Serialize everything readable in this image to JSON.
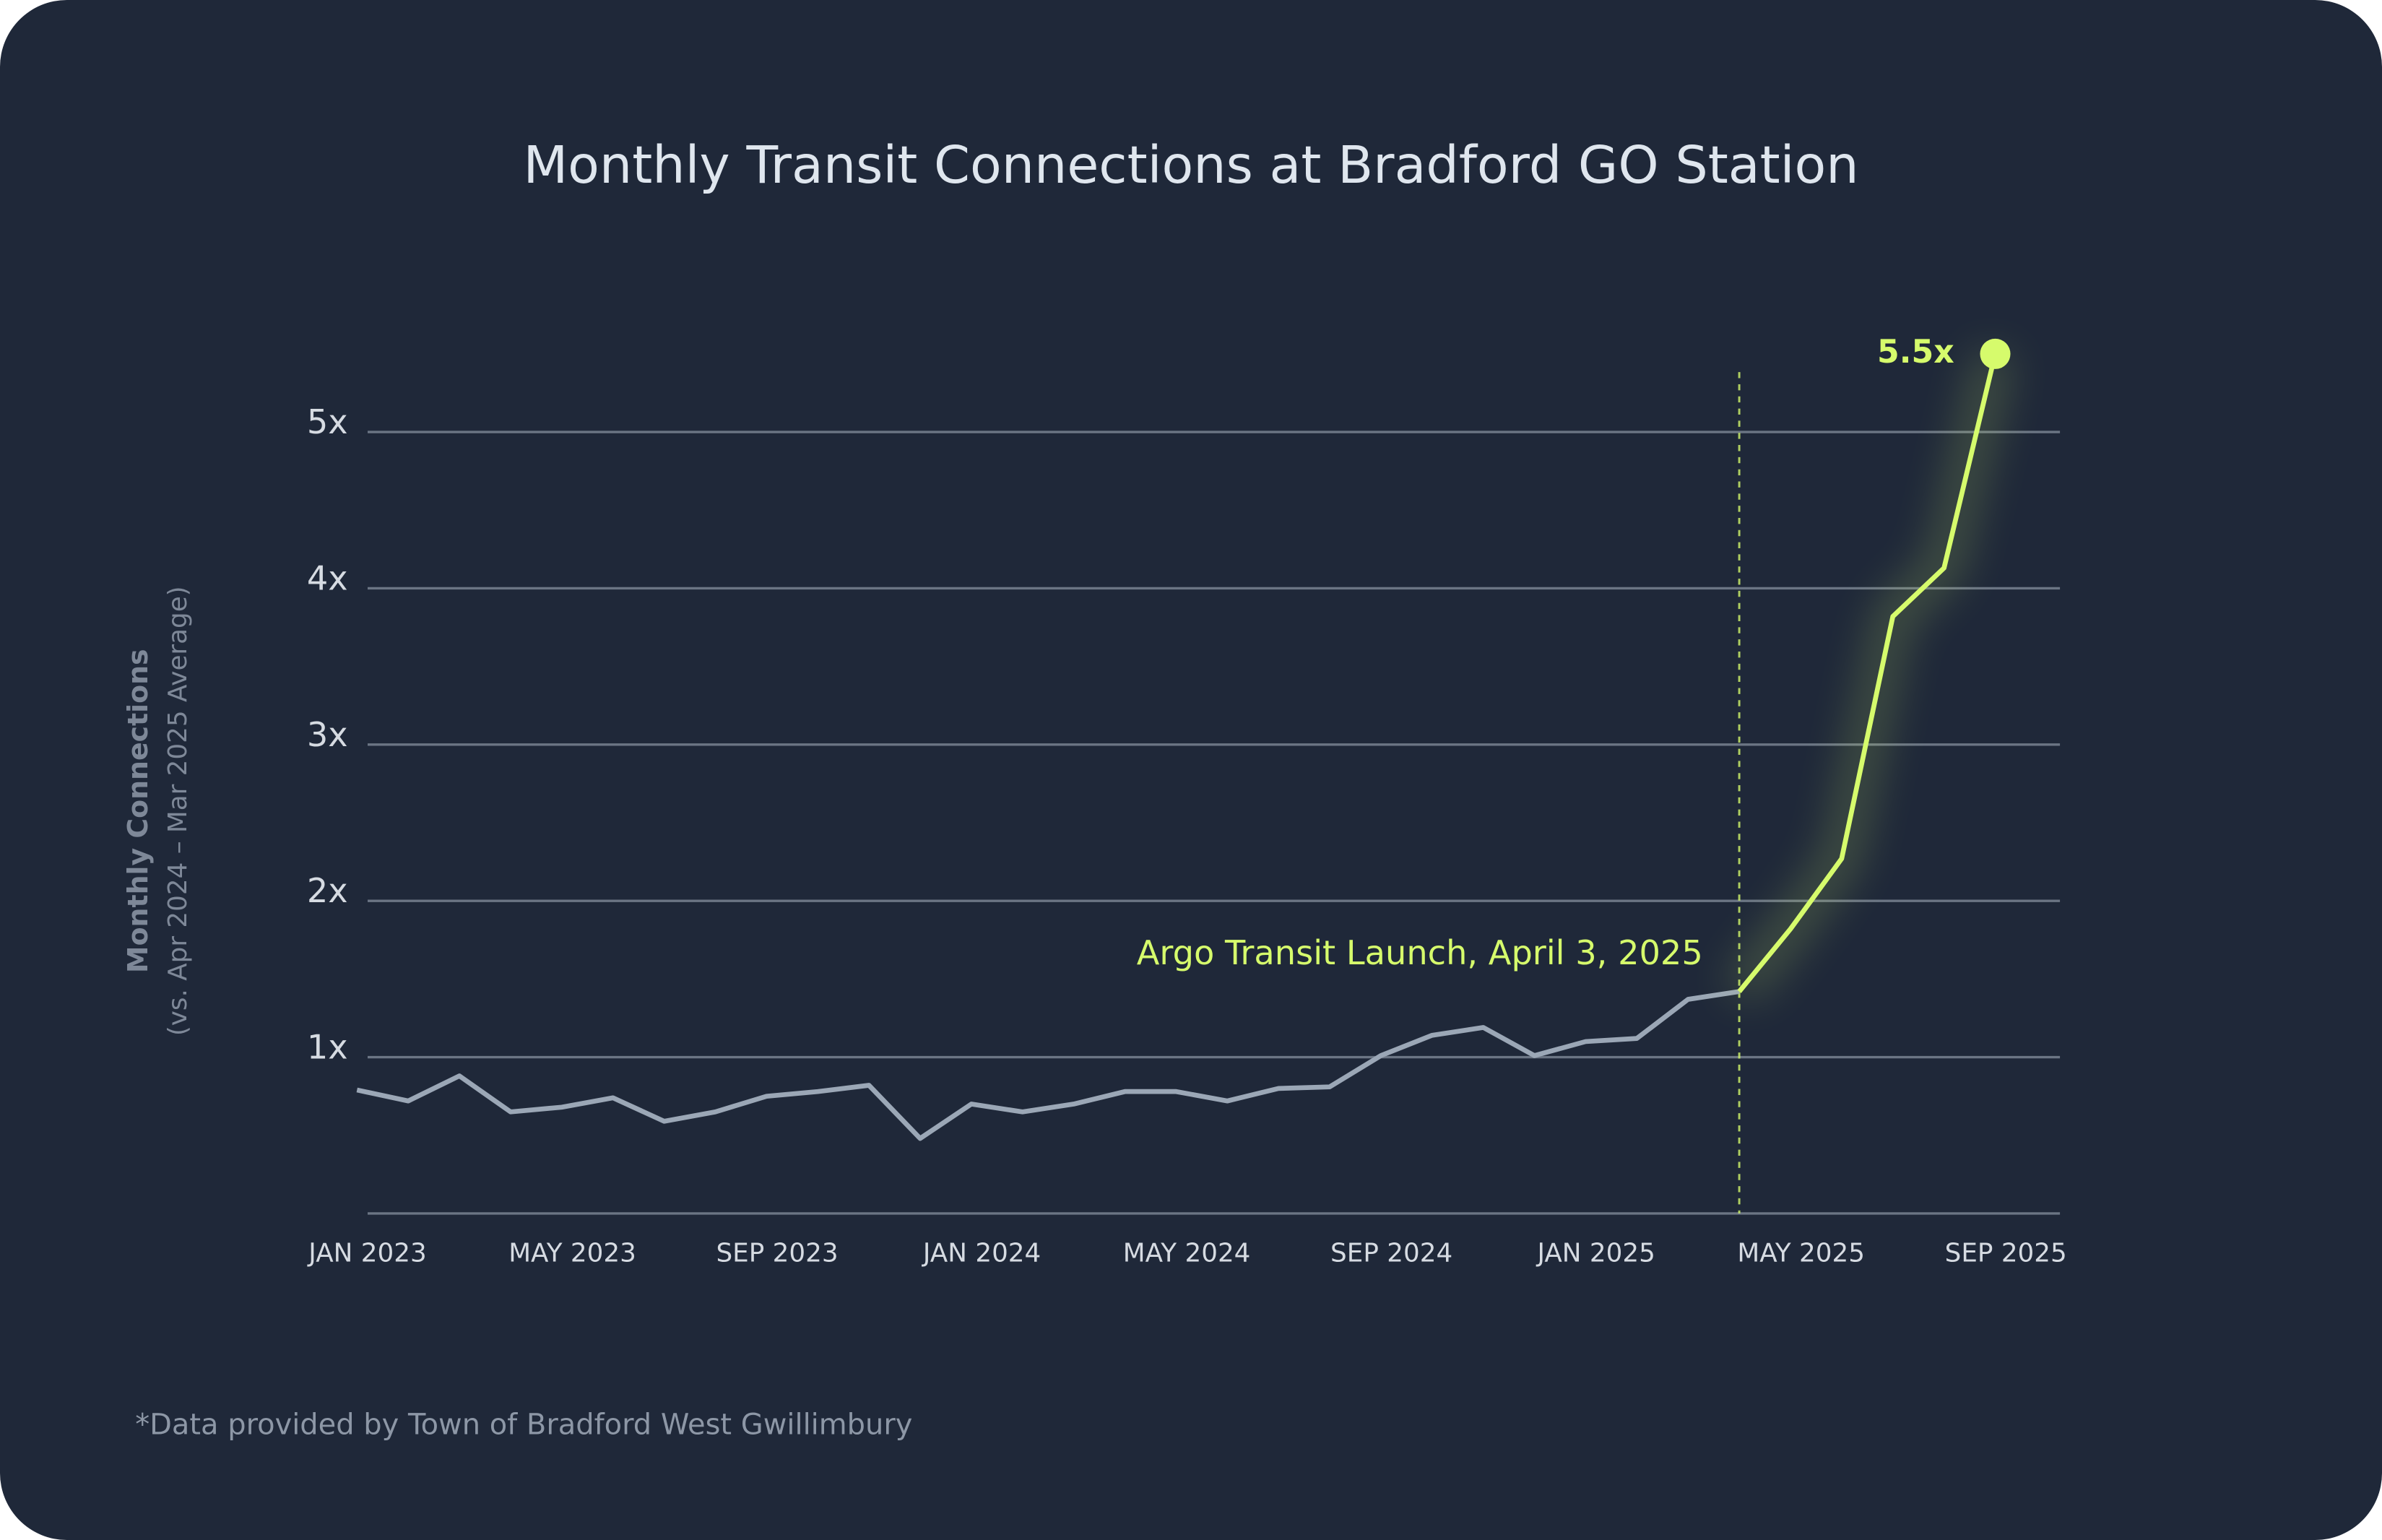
{
  "chart_data": {
    "type": "line",
    "title": "Monthly Transit Connections at Bradford GO Station",
    "y_label": "Monthly Connections",
    "y_sublabel": "(vs. Apr 2024 – Mar 2025 Average)",
    "footnote": "*Data provided by Town of Bradford West Gwillimbury",
    "annotation": "Argo Transit Launch, April 3, 2025",
    "categories": [
      "JAN 2023",
      null,
      null,
      null,
      "MAY 2023",
      null,
      null,
      null,
      "SEP 2023",
      null,
      null,
      null,
      "JAN 2024",
      null,
      null,
      null,
      "MAY 2024",
      null,
      null,
      null,
      "SEP 2024",
      null,
      null,
      null,
      "JAN 2025",
      null,
      null,
      null,
      "MAY 2025",
      null,
      null,
      null,
      "SEP 2025"
    ],
    "series": [
      {
        "color": "#9ba7b6",
        "values": [
          0.79,
          0.72,
          0.88,
          0.65,
          0.68,
          0.74,
          0.59,
          0.65,
          0.75,
          0.78,
          0.82,
          0.48,
          0.7,
          0.65,
          0.7,
          0.78,
          0.78,
          0.72,
          0.8,
          0.81,
          1.01,
          1.14,
          1.19,
          1.01,
          1.1,
          1.12,
          1.37,
          1.42,
          null,
          null,
          null,
          null,
          null
        ]
      },
      {
        "color": "#d6fb6c",
        "values": [
          null,
          null,
          null,
          null,
          null,
          null,
          null,
          null,
          null,
          null,
          null,
          null,
          null,
          null,
          null,
          null,
          null,
          null,
          null,
          null,
          null,
          null,
          null,
          null,
          null,
          null,
          null,
          1.42,
          1.82,
          2.27,
          3.82,
          4.13,
          5.5
        ],
        "value_labels": [
          null,
          null,
          null,
          null,
          null,
          null,
          null,
          null,
          null,
          null,
          null,
          null,
          null,
          null,
          null,
          null,
          null,
          null,
          null,
          null,
          null,
          null,
          null,
          null,
          null,
          null,
          null,
          null,
          null,
          null,
          null,
          null,
          "5.5x"
        ]
      }
    ],
    "ylim": [
      0,
      5.5
    ],
    "yticks": [
      {
        "value": 1,
        "label": "1x"
      },
      {
        "value": 2,
        "label": "2x"
      },
      {
        "value": 3,
        "label": "3x"
      },
      {
        "value": 4,
        "label": "4x"
      },
      {
        "value": 5,
        "label": "5x"
      }
    ],
    "grid": true
  }
}
